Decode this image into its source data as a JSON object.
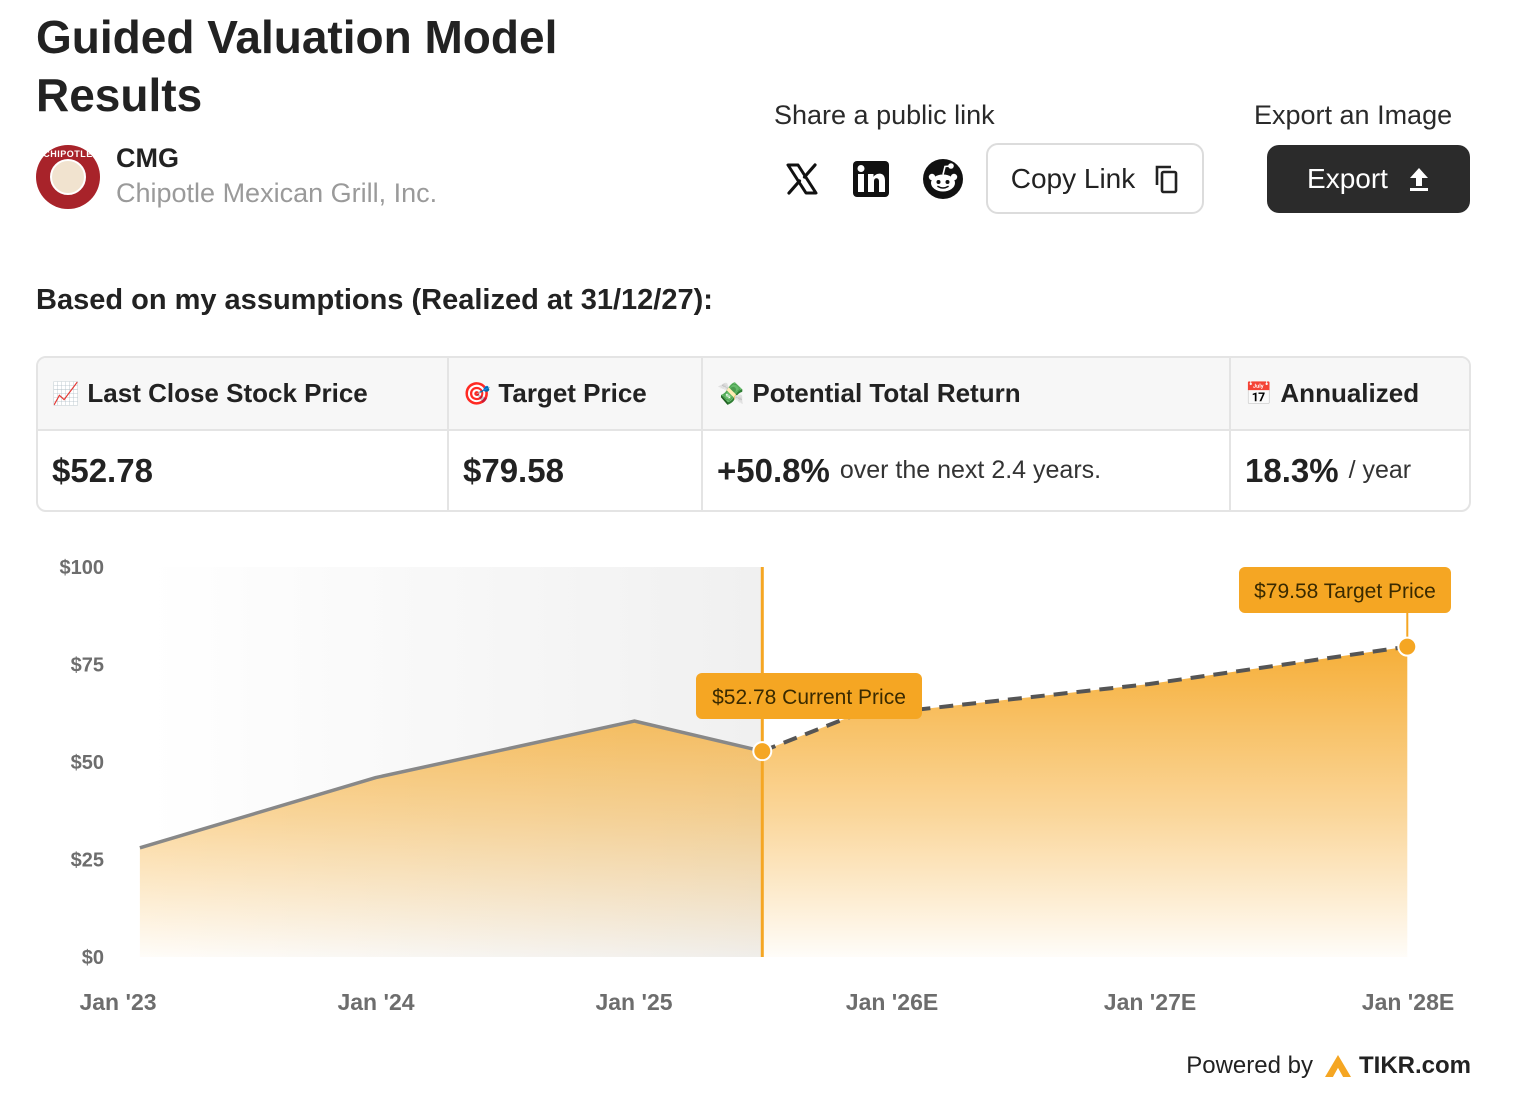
{
  "header": {
    "title": "Guided Valuation Model Results",
    "ticker": "CMG",
    "company_name": "Chipotle Mexican Grill, Inc.",
    "logo_text": "CHIPOTLE"
  },
  "share": {
    "label": "Share a public link",
    "copy_label": "Copy Link"
  },
  "export": {
    "label": "Export an Image",
    "button_label": "Export"
  },
  "assumption_text": "Based on my assumptions (Realized at 31/12/27):",
  "summary": {
    "last_close_label": "Last Close Stock Price",
    "last_close_value": "$52.78",
    "target_label": "Target Price",
    "target_value": "$79.58",
    "return_label": "Potential Total Return",
    "return_value": "+50.8%",
    "return_suffix": "over the next 2.4 years.",
    "annualized_label": "Annualized",
    "annualized_value": "18.3%",
    "annualized_suffix": "/ year"
  },
  "chart_data": {
    "type": "area",
    "y_ticks": [
      "$0",
      "$25",
      "$50",
      "$75",
      "$100"
    ],
    "ylim": [
      0,
      100
    ],
    "x_ticks": [
      "Jan '23",
      "Jan '24",
      "Jan '25",
      "Jan '26E",
      "Jan '27E",
      "Jan '28E"
    ],
    "historical": [
      {
        "x": "2023-02-01",
        "y": 28
      },
      {
        "x": "2024-01-01",
        "y": 46
      },
      {
        "x": "2025-01-01",
        "y": 60.5
      },
      {
        "x": "2025-07-01",
        "y": 52.78
      }
    ],
    "projected": [
      {
        "x": "2025-07-01",
        "y": 52.78
      },
      {
        "x": "2025-11-01",
        "y": 61.5
      },
      {
        "x": "2026-12-31",
        "y": 70
      },
      {
        "x": "2027-12-31",
        "y": 79.58
      }
    ],
    "current_callout": "$52.78 Current Price",
    "target_callout": "$79.58 Target Price",
    "colors": {
      "accent": "#f5a623",
      "historical_line": "#888888",
      "projected_line": "#555555"
    }
  },
  "footer": {
    "powered_by": "Powered by",
    "brand": "TIKR.com"
  }
}
